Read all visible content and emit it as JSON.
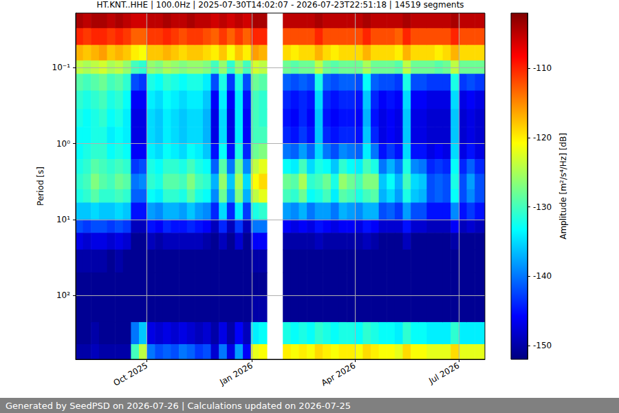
{
  "chart_data": {
    "type": "heatmap",
    "title": "HT.KNT..HHE | 100.0Hz | 2025-07-30T14:02:07 - 2026-07-23T22:51:18 | 14519 segments",
    "footer": "Generated by SeedPSD on 2026-07-26 | Calculations updated on 2026-07-25",
    "ylabel": "Period [s]",
    "log": "y",
    "grid": true,
    "xlim": [
      "2025-07-30T14:02:07",
      "2026-07-23T22:51:18"
    ],
    "xticks": [
      {
        "value": "2025-10-01",
        "label": "Oct 2025"
      },
      {
        "value": "2026-01-01",
        "label": "Jan 2026"
      },
      {
        "value": "2026-04-01",
        "label": "Apr 2026"
      },
      {
        "value": "2026-07-01",
        "label": "Jul 2026"
      }
    ],
    "ylim": [
      0.019,
      700
    ],
    "yticks": [
      {
        "value": 0.1,
        "label": "10⁻¹"
      },
      {
        "value": 1,
        "label": "10⁰"
      },
      {
        "value": 10,
        "label": "10¹"
      },
      {
        "value": 100,
        "label": "10²"
      }
    ],
    "x_bins": [
      "2025-07-30T14:02:07",
      "2025-08-06",
      "2025-08-13",
      "2025-08-20",
      "2025-08-27",
      "2025-09-03",
      "2025-09-10",
      "2025-09-17",
      "2025-09-24",
      "2025-10-01",
      "2025-10-08",
      "2025-10-15",
      "2025-10-22",
      "2025-10-29",
      "2025-11-05",
      "2025-11-12",
      "2025-11-19",
      "2025-11-26",
      "2025-12-03",
      "2025-12-10",
      "2025-12-17",
      "2025-12-24",
      "2025-12-31",
      "2026-01-07",
      "2026-01-14",
      "2026-01-21",
      "2026-01-28",
      "2026-02-04",
      "2026-02-11",
      "2026-02-18",
      "2026-02-25",
      "2026-03-04",
      "2026-03-11",
      "2026-03-18",
      "2026-03-25",
      "2026-04-01",
      "2026-04-08",
      "2026-04-15",
      "2026-04-22",
      "2026-04-29",
      "2026-05-06",
      "2026-05-13",
      "2026-05-20",
      "2026-05-27",
      "2026-06-03",
      "2026-06-10",
      "2026-06-17",
      "2026-06-24",
      "2026-07-01",
      "2026-07-08",
      "2026-07-15",
      "2026-07-22",
      "2026-07-23T22:51:18"
    ],
    "y_bins": [
      0.019,
      0.03,
      0.05,
      0.08,
      0.12,
      0.2,
      0.35,
      0.6,
      1,
      1.6,
      2.5,
      4,
      6,
      10,
      15,
      25,
      50,
      100,
      226,
      442,
      700
    ],
    "values": [
      [
        -104,
        -110,
        -117,
        -124,
        -129,
        -131,
        -132,
        -133,
        -133,
        -132,
        -131,
        -132,
        -136,
        -142,
        -147,
        -150,
        -151,
        -151,
        -151,
        -150
      ],
      [
        -105,
        -111,
        -118,
        -125,
        -130,
        -132,
        -133,
        -133,
        -132,
        -131,
        -130,
        -131,
        -136,
        -143,
        -148,
        -150,
        -151,
        -151,
        -151,
        -150
      ],
      [
        -104,
        -110,
        -117,
        -124,
        -129,
        -131,
        -132,
        -132,
        -131,
        -129,
        -127,
        -129,
        -135,
        -142,
        -147,
        -150,
        -151,
        -151,
        -150,
        -149
      ],
      [
        -104,
        -110,
        -116,
        -123,
        -128,
        -130,
        -131,
        -132,
        -131,
        -130,
        -129,
        -131,
        -136,
        -142,
        -147,
        -150,
        -151,
        -151,
        -151,
        -150
      ],
      [
        -105,
        -111,
        -118,
        -125,
        -130,
        -132,
        -133,
        -134,
        -133,
        -131,
        -130,
        -131,
        -136,
        -143,
        -148,
        -151,
        -151,
        -151,
        -151,
        -150
      ],
      [
        -104,
        -110,
        -117,
        -124,
        -129,
        -131,
        -132,
        -133,
        -132,
        -130,
        -128,
        -130,
        -135,
        -142,
        -147,
        -150,
        -151,
        -151,
        -151,
        -150
      ],
      [
        -105,
        -111,
        -118,
        -126,
        -131,
        -133,
        -134,
        -134,
        -133,
        -131,
        -129,
        -131,
        -136,
        -143,
        -148,
        -151,
        -151,
        -151,
        -151,
        -150
      ],
      [
        -106,
        -113,
        -120,
        -130,
        -142,
        -146,
        -147,
        -147,
        -146,
        -143,
        -140,
        -141,
        -145,
        -149,
        -151,
        -151,
        -151,
        -151,
        -140,
        -130
      ],
      [
        -106,
        -113,
        -121,
        -131,
        -143,
        -146,
        -147,
        -147,
        -146,
        -142,
        -139,
        -141,
        -145,
        -149,
        -151,
        -151,
        -151,
        -151,
        -136,
        -124
      ],
      [
        -105,
        -111,
        -118,
        -126,
        -132,
        -134,
        -135,
        -135,
        -134,
        -132,
        -131,
        -133,
        -138,
        -145,
        -149,
        -151,
        -151,
        -151,
        -147,
        -140
      ],
      [
        -105,
        -111,
        -118,
        -127,
        -133,
        -135,
        -136,
        -136,
        -135,
        -133,
        -132,
        -134,
        -139,
        -146,
        -150,
        -151,
        -151,
        -151,
        -148,
        -142
      ],
      [
        -104,
        -110,
        -117,
        -125,
        -131,
        -133,
        -134,
        -134,
        -133,
        -131,
        -129,
        -131,
        -137,
        -144,
        -149,
        -151,
        -151,
        -151,
        -147,
        -141
      ],
      [
        -105,
        -111,
        -118,
        -126,
        -132,
        -134,
        -135,
        -135,
        -134,
        -131,
        -129,
        -131,
        -137,
        -145,
        -149,
        -151,
        -151,
        -151,
        -148,
        -142
      ],
      [
        -105,
        -112,
        -119,
        -127,
        -133,
        -135,
        -136,
        -136,
        -135,
        -132,
        -130,
        -132,
        -138,
        -145,
        -149,
        -151,
        -151,
        -151,
        -147,
        -140
      ],
      [
        -104,
        -111,
        -118,
        -126,
        -132,
        -134,
        -135,
        -135,
        -133,
        -130,
        -127,
        -129,
        -136,
        -144,
        -149,
        -151,
        -151,
        -151,
        -148,
        -141
      ],
      [
        -105,
        -111,
        -118,
        -126,
        -132,
        -134,
        -135,
        -135,
        -134,
        -132,
        -130,
        -132,
        -138,
        -145,
        -149,
        -151,
        -151,
        -151,
        -149,
        -143
      ],
      [
        -105,
        -112,
        -119,
        -127,
        -134,
        -136,
        -137,
        -137,
        -136,
        -133,
        -131,
        -133,
        -139,
        -146,
        -150,
        -151,
        -151,
        -151,
        -148,
        -142
      ],
      [
        -106,
        -113,
        -120,
        -130,
        -142,
        -146,
        -147,
        -147,
        -145,
        -141,
        -137,
        -139,
        -144,
        -149,
        -151,
        -151,
        -151,
        -151,
        -150,
        -148
      ],
      [
        -105,
        -111,
        -118,
        -126,
        -132,
        -134,
        -135,
        -135,
        -133,
        -129,
        -126,
        -128,
        -135,
        -144,
        -149,
        -151,
        -151,
        -151,
        -147,
        -140
      ],
      [
        -106,
        -113,
        -121,
        -131,
        -143,
        -146,
        -147,
        -147,
        -145,
        -140,
        -136,
        -138,
        -144,
        -149,
        -151,
        -151,
        -151,
        -151,
        -150,
        -147
      ],
      [
        -105,
        -111,
        -118,
        -126,
        -132,
        -134,
        -134,
        -134,
        -132,
        -128,
        -125,
        -127,
        -134,
        -143,
        -148,
        -151,
        -151,
        -151,
        -146,
        -138
      ],
      [
        -106,
        -113,
        -120,
        -130,
        -142,
        -145,
        -146,
        -146,
        -144,
        -139,
        -135,
        -137,
        -143,
        -149,
        -151,
        -151,
        -151,
        -151,
        -149,
        -146
      ],
      [
        -104,
        -110,
        -116,
        -123,
        -128,
        -130,
        -130,
        -130,
        -128,
        -124,
        -121,
        -124,
        -132,
        -140,
        -146,
        -150,
        -151,
        -150,
        -134,
        -122
      ],
      [
        -104,
        -110,
        -117,
        -124,
        -129,
        -131,
        -131,
        -130,
        -127,
        -122,
        -119,
        -122,
        -131,
        -140,
        -146,
        -150,
        -151,
        -150,
        -133,
        -121
      ],
      null,
      null,
      [
        -105,
        -112,
        -119,
        -128,
        -141,
        -144,
        -145,
        -144,
        -140,
        -133,
        -128,
        -130,
        -138,
        -146,
        -150,
        -151,
        -151,
        -151,
        -132,
        -120
      ],
      [
        -105,
        -112,
        -120,
        -129,
        -142,
        -145,
        -146,
        -145,
        -141,
        -134,
        -129,
        -131,
        -139,
        -147,
        -150,
        -151,
        -151,
        -151,
        -133,
        -121
      ],
      [
        -105,
        -112,
        -119,
        -128,
        -141,
        -144,
        -144,
        -143,
        -138,
        -130,
        -125,
        -128,
        -137,
        -146,
        -150,
        -151,
        -151,
        -151,
        -132,
        -120
      ],
      [
        -105,
        -112,
        -119,
        -128,
        -142,
        -145,
        -146,
        -145,
        -141,
        -135,
        -131,
        -133,
        -140,
        -147,
        -150,
        -151,
        -151,
        -151,
        -133,
        -121
      ],
      [
        -104,
        -110,
        -117,
        -124,
        -132,
        -135,
        -136,
        -136,
        -135,
        -132,
        -130,
        -132,
        -138,
        -145,
        -149,
        -151,
        -151,
        -151,
        -131,
        -119
      ],
      [
        -105,
        -112,
        -119,
        -128,
        -141,
        -144,
        -145,
        -144,
        -140,
        -133,
        -128,
        -130,
        -138,
        -146,
        -150,
        -151,
        -151,
        -151,
        -132,
        -120
      ],
      [
        -105,
        -112,
        -120,
        -129,
        -142,
        -145,
        -146,
        -145,
        -142,
        -136,
        -132,
        -134,
        -140,
        -147,
        -150,
        -151,
        -151,
        -151,
        -133,
        -121
      ],
      [
        -105,
        -112,
        -119,
        -128,
        -141,
        -144,
        -145,
        -144,
        -139,
        -131,
        -126,
        -129,
        -137,
        -146,
        -150,
        -151,
        -151,
        -151,
        -132,
        -120
      ],
      [
        -105,
        -112,
        -119,
        -128,
        -141,
        -144,
        -145,
        -144,
        -140,
        -133,
        -128,
        -130,
        -138,
        -146,
        -150,
        -151,
        -151,
        -151,
        -132,
        -120
      ],
      [
        -105,
        -112,
        -119,
        -128,
        -142,
        -145,
        -146,
        -145,
        -141,
        -134,
        -130,
        -132,
        -139,
        -147,
        -150,
        -151,
        -151,
        -151,
        -133,
        -121
      ],
      [
        -104,
        -110,
        -117,
        -125,
        -133,
        -136,
        -137,
        -136,
        -134,
        -130,
        -127,
        -130,
        -137,
        -145,
        -149,
        -151,
        -151,
        -151,
        -131,
        -119
      ],
      [
        -105,
        -112,
        -119,
        -128,
        -141,
        -144,
        -145,
        -144,
        -140,
        -132,
        -127,
        -129,
        -137,
        -146,
        -150,
        -151,
        -151,
        -151,
        -132,
        -120
      ],
      [
        -105,
        -112,
        -119,
        -128,
        -142,
        -146,
        -147,
        -147,
        -145,
        -140,
        -136,
        -137,
        -142,
        -148,
        -151,
        -151,
        -151,
        -151,
        -133,
        -121
      ],
      [
        -105,
        -112,
        -119,
        -128,
        -142,
        -145,
        -146,
        -146,
        -143,
        -137,
        -133,
        -135,
        -141,
        -148,
        -151,
        -151,
        -151,
        -151,
        -133,
        -121
      ],
      [
        -105,
        -113,
        -120,
        -129,
        -143,
        -146,
        -147,
        -147,
        -145,
        -140,
        -137,
        -138,
        -143,
        -148,
        -151,
        -151,
        -151,
        -151,
        -134,
        -122
      ],
      [
        -104,
        -110,
        -117,
        -124,
        -132,
        -135,
        -136,
        -136,
        -135,
        -132,
        -130,
        -132,
        -138,
        -145,
        -149,
        -151,
        -151,
        -151,
        -131,
        -119
      ],
      [
        -105,
        -112,
        -119,
        -128,
        -142,
        -146,
        -147,
        -147,
        -145,
        -139,
        -135,
        -136,
        -142,
        -148,
        -151,
        -151,
        -151,
        -151,
        -133,
        -121
      ],
      [
        -105,
        -112,
        -119,
        -128,
        -142,
        -146,
        -147,
        -147,
        -145,
        -140,
        -136,
        -137,
        -142,
        -148,
        -151,
        -151,
        -151,
        -151,
        -133,
        -121
      ],
      [
        -105,
        -112,
        -119,
        -128,
        -143,
        -147,
        -148,
        -148,
        -147,
        -144,
        -142,
        -142,
        -145,
        -149,
        -151,
        -151,
        -151,
        -151,
        -134,
        -122
      ],
      [
        -105,
        -112,
        -120,
        -129,
        -143,
        -147,
        -148,
        -148,
        -146,
        -143,
        -141,
        -141,
        -145,
        -149,
        -151,
        -151,
        -151,
        -151,
        -134,
        -122
      ],
      [
        -105,
        -112,
        -119,
        -128,
        -143,
        -147,
        -148,
        -148,
        -147,
        -144,
        -142,
        -142,
        -145,
        -149,
        -151,
        -151,
        -151,
        -151,
        -134,
        -122
      ],
      [
        -104,
        -110,
        -117,
        -124,
        -132,
        -135,
        -136,
        -136,
        -135,
        -133,
        -132,
        -133,
        -139,
        -146,
        -150,
        -151,
        -151,
        -151,
        -131,
        -119
      ],
      [
        -105,
        -112,
        -119,
        -128,
        -143,
        -147,
        -148,
        -148,
        -147,
        -144,
        -142,
        -142,
        -145,
        -149,
        -151,
        -151,
        -151,
        -151,
        -134,
        -122
      ],
      [
        -105,
        -112,
        -119,
        -128,
        -142,
        -146,
        -147,
        -147,
        -145,
        -141,
        -138,
        -139,
        -143,
        -148,
        -151,
        -151,
        -151,
        -151,
        -134,
        -122
      ],
      [
        -105,
        -112,
        -119,
        -128,
        -143,
        -147,
        -148,
        -148,
        -147,
        -144,
        -142,
        -142,
        -145,
        -149,
        -151,
        -151,
        -151,
        -151,
        -134,
        -122
      ],
      [
        -105,
        -112,
        -119,
        -128,
        -143,
        -147,
        -148,
        -148,
        -147,
        -144,
        -142,
        -142,
        -145,
        -149,
        -151,
        -151,
        -151,
        -151,
        -134,
        -122
      ]
    ],
    "colorbar": {
      "label": "Amplitude [m²/s⁴/Hz] [dB]",
      "range": [
        -152,
        -102
      ],
      "ticks": [
        -150,
        -140,
        -130,
        -120,
        -110
      ]
    }
  }
}
